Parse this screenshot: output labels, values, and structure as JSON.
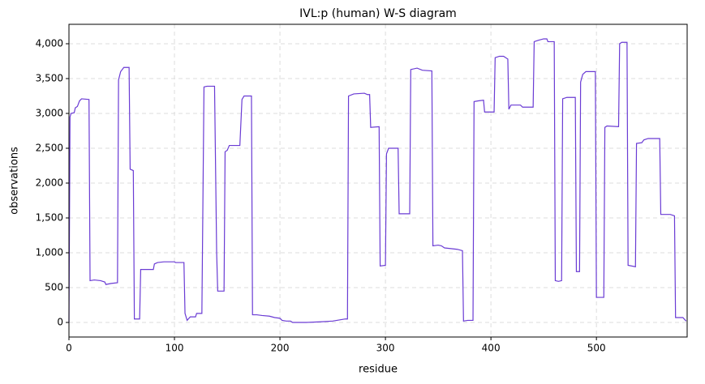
{
  "chart_data": {
    "type": "line",
    "title": "IVL:p (human) W-S diagram",
    "x_label": "residue",
    "y_label": "observations",
    "x": [
      0,
      1,
      2,
      5,
      6,
      8,
      10,
      12,
      19,
      20,
      24,
      30,
      34,
      35,
      40,
      46,
      47,
      49,
      52,
      57,
      58,
      61,
      62,
      67,
      68,
      80,
      81,
      84,
      90,
      100,
      101,
      109,
      110,
      112,
      115,
      120,
      121,
      126,
      128,
      131,
      138,
      140,
      141,
      147,
      148,
      150,
      152,
      162,
      164,
      166,
      173,
      174,
      178,
      183,
      190,
      195,
      200,
      202,
      206,
      210,
      212,
      225,
      240,
      250,
      258,
      262,
      264,
      265,
      270,
      280,
      283,
      285,
      286,
      294,
      295,
      300,
      301,
      303,
      312,
      313,
      323,
      324,
      330,
      335,
      344,
      345,
      350,
      353,
      356,
      362,
      368,
      373,
      374,
      378,
      383,
      384,
      388,
      393,
      394,
      403,
      404,
      408,
      412,
      416,
      417,
      419,
      428,
      430,
      440,
      441,
      445,
      450,
      453,
      454,
      460,
      461,
      464,
      467,
      468,
      472,
      480,
      481,
      484,
      485,
      487,
      490,
      499,
      500,
      507,
      508,
      510,
      521,
      522,
      524,
      529,
      530,
      537,
      538,
      543,
      545,
      549,
      560,
      561,
      570,
      574,
      575,
      582,
      585
    ],
    "series": [
      {
        "name": "observations",
        "color": "#6a3bd4",
        "values": [
          0,
          2950,
          3000,
          3010,
          3080,
          3100,
          3180,
          3210,
          3200,
          600,
          610,
          600,
          580,
          545,
          560,
          570,
          3480,
          3600,
          3660,
          3660,
          2200,
          2180,
          50,
          50,
          760,
          760,
          840,
          860,
          870,
          870,
          860,
          860,
          130,
          30,
          80,
          80,
          130,
          130,
          3380,
          3390,
          3390,
          1000,
          450,
          450,
          2450,
          2470,
          2540,
          2540,
          3200,
          3250,
          3250,
          110,
          110,
          100,
          90,
          70,
          60,
          30,
          20,
          20,
          0,
          0,
          10,
          20,
          40,
          50,
          50,
          3250,
          3280,
          3290,
          3270,
          3270,
          2800,
          2810,
          810,
          820,
          2420,
          2500,
          2500,
          1560,
          1560,
          3630,
          3650,
          3620,
          3610,
          1100,
          1110,
          1100,
          1070,
          1060,
          1050,
          1030,
          20,
          30,
          30,
          3170,
          3180,
          3190,
          3020,
          3020,
          3800,
          3820,
          3820,
          3780,
          3060,
          3120,
          3120,
          3090,
          3090,
          4030,
          4050,
          4070,
          4070,
          4030,
          4030,
          600,
          590,
          600,
          3210,
          3230,
          3230,
          730,
          730,
          3450,
          3560,
          3600,
          3600,
          360,
          360,
          2800,
          2820,
          2810,
          4000,
          4020,
          4020,
          820,
          800,
          2570,
          2580,
          2620,
          2640,
          2640,
          1550,
          1550,
          1530,
          70,
          70,
          20
        ]
      }
    ],
    "xlim": [
      0,
      586
    ],
    "ylim": [
      -209,
      4279
    ],
    "xticks": [
      0,
      100,
      200,
      300,
      400,
      500
    ],
    "yticks": [
      0,
      500,
      {
        "value": 1000,
        "label": "1,000"
      },
      {
        "value": 1500,
        "label": "1,500"
      },
      {
        "value": 2000,
        "label": "2,000"
      },
      {
        "value": 2500,
        "label": "2,500"
      },
      {
        "value": 3000,
        "label": "3,000"
      },
      {
        "value": 3500,
        "label": "3,500"
      },
      {
        "value": 4000,
        "label": "4,000"
      }
    ],
    "grid": true
  }
}
